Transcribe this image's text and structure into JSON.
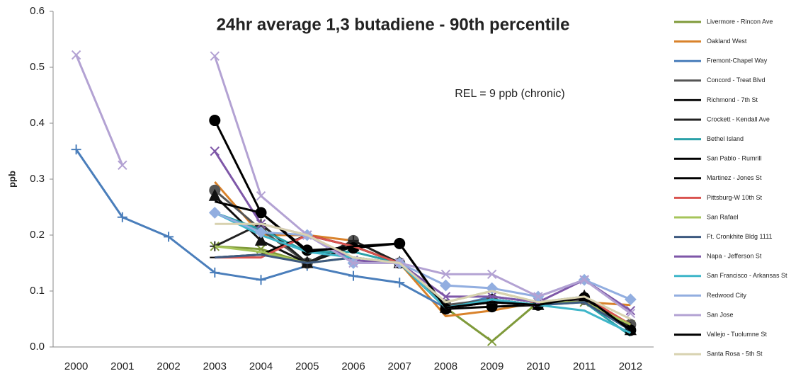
{
  "chart_data": {
    "type": "line",
    "title": "24hr average 1,3 butadiene - 90th percentile",
    "annotation": "REL = 9 ppb (chronic)",
    "y_label": "ppb",
    "categories": [
      "2000",
      "2001",
      "2002",
      "2003",
      "2004",
      "2005",
      "2006",
      "2007",
      "2008",
      "2009",
      "2010",
      "2011",
      "2012"
    ],
    "ylim": [
      0,
      0.6
    ],
    "yticks": [
      {
        "value": 0,
        "label": "0.0"
      },
      0.1,
      0.2,
      0.3,
      0.4,
      0.5,
      0.6
    ],
    "grid": false,
    "legend": "right",
    "series": [
      {
        "name": "Livermore - Rincon Ave",
        "color": "#7f9a3a",
        "marker": "x",
        "values": [
          null,
          null,
          null,
          0.18,
          0.175,
          0.15,
          0.18,
          0.15,
          0.07,
          0.01,
          0.08,
          0.08,
          0.04
        ]
      },
      {
        "name": "Oakland West",
        "color": "#d9822b",
        "marker": "none",
        "values": [
          null,
          null,
          null,
          0.295,
          0.2,
          0.2,
          0.19,
          0.15,
          0.055,
          0.065,
          0.08,
          0.08,
          0.075
        ]
      },
      {
        "name": "Fremont-Chapel Way",
        "color": "#4a7ebb",
        "marker": "+",
        "values": [
          0.353,
          0.232,
          0.197,
          0.133,
          0.12,
          0.145,
          0.127,
          0.115,
          0.07,
          0.09,
          0.08,
          0.09,
          0.03
        ]
      },
      {
        "name": "Concord - Treat Blvd",
        "color": "#555555",
        "marker": "circle",
        "values": [
          null,
          null,
          null,
          0.28,
          0.21,
          0.15,
          0.19,
          0.15,
          0.075,
          0.085,
          0.075,
          0.085,
          0.04
        ]
      },
      {
        "name": "Richmond - 7th St",
        "color": "#111111",
        "marker": "triangle",
        "values": [
          null,
          null,
          null,
          0.27,
          0.19,
          0.15,
          0.18,
          0.15,
          0.07,
          0.085,
          0.075,
          0.09,
          0.03
        ]
      },
      {
        "name": "Crockett - Kendall Ave",
        "color": "#222222",
        "marker": "+",
        "values": [
          null,
          null,
          null,
          0.18,
          0.22,
          0.15,
          0.19,
          0.15,
          0.07,
          0.085,
          0.075,
          0.09,
          0.035
        ]
      },
      {
        "name": "Bethel Island",
        "color": "#2aa1a8",
        "marker": "none",
        "values": [
          null,
          null,
          null,
          0.24,
          0.21,
          0.17,
          0.17,
          0.15,
          0.07,
          0.085,
          0.075,
          0.08,
          0.02
        ]
      },
      {
        "name": "San Pablo - Rumrill",
        "color": "#000000",
        "marker": "dash",
        "values": [
          null,
          null,
          null,
          0.16,
          0.165,
          0.2,
          0.18,
          0.15,
          0.07,
          0.08,
          0.075,
          0.09,
          0.03
        ]
      },
      {
        "name": "Martinez - Jones St",
        "color": "#000000",
        "marker": "circle",
        "values": [
          null,
          null,
          null,
          0.405,
          0.24,
          0.173,
          0.177,
          0.185,
          0.068,
          0.072,
          0.075,
          0.088,
          0.03
        ]
      },
      {
        "name": "Pittsburg-W 10th St",
        "color": "#d9534f",
        "marker": "none",
        "values": [
          null,
          null,
          null,
          0.16,
          0.16,
          0.2,
          0.18,
          0.15,
          0.07,
          0.08,
          0.075,
          0.09,
          0.04
        ]
      },
      {
        "name": "San Rafael",
        "color": "#a6c45a",
        "marker": "none",
        "values": [
          null,
          null,
          null,
          0.18,
          0.17,
          0.15,
          0.16,
          0.15,
          0.08,
          0.1,
          0.08,
          0.08,
          0.04
        ]
      },
      {
        "name": "Ft. Cronkhite Bldg 1111",
        "color": "#3e5a80",
        "marker": "none",
        "values": [
          null,
          null,
          null,
          0.16,
          0.165,
          0.15,
          0.16,
          0.15,
          0.07,
          0.08,
          0.075,
          0.08,
          0.03
        ]
      },
      {
        "name": "Napa - Jefferson St",
        "color": "#7e57a8",
        "marker": "x",
        "values": [
          null,
          null,
          null,
          0.35,
          0.22,
          0.2,
          0.155,
          0.15,
          0.09,
          0.09,
          0.08,
          0.12,
          0.065
        ]
      },
      {
        "name": "San Francisco - Arkansas St",
        "color": "#3fb6c9",
        "marker": "none",
        "values": [
          null,
          null,
          null,
          0.24,
          0.2,
          0.17,
          0.16,
          0.15,
          0.07,
          0.085,
          0.075,
          0.065,
          0.025
        ]
      },
      {
        "name": "Redwood City",
        "color": "#92aee0",
        "marker": "diamond",
        "values": [
          null,
          null,
          null,
          0.24,
          0.205,
          0.2,
          0.15,
          0.15,
          0.11,
          0.105,
          0.09,
          0.12,
          0.085
        ]
      },
      {
        "name": "San Jose",
        "color": "#b3a2d3",
        "marker": "x",
        "values": [
          0.522,
          0.325,
          null,
          0.52,
          0.27,
          0.2,
          0.15,
          0.15,
          0.13,
          0.13,
          0.09,
          0.12,
          0.06
        ]
      },
      {
        "name": "Vallejo - Tuolumne St",
        "color": "#000000",
        "marker": "none",
        "values": [
          null,
          null,
          null,
          0.26,
          0.24,
          0.17,
          0.18,
          0.185,
          0.07,
          0.08,
          0.075,
          0.09,
          0.03
        ]
      },
      {
        "name": "Santa Rosa - 5th St",
        "color": "#d8d2b0",
        "marker": "none",
        "values": [
          null,
          null,
          null,
          0.22,
          0.22,
          0.2,
          0.16,
          0.15,
          0.08,
          0.1,
          0.08,
          0.09,
          0.05
        ]
      }
    ]
  }
}
